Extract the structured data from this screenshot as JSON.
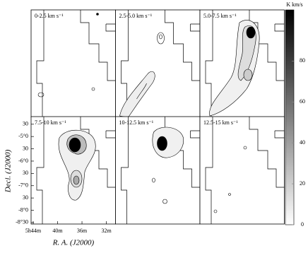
{
  "figure": {
    "panels": [
      "0-2.5 km s⁻¹",
      "2.5-5.0 km s⁻¹",
      "5.0-7.5 km s⁻¹",
      "7.5-10 km s⁻¹",
      "10-12.5 km s⁻¹",
      "12.5-15 km s⁻¹"
    ],
    "xlabel": "R. A. (J2000)",
    "ylabel": "Decl. (J2000)",
    "xlim": [
      44.35,
      30.5
    ],
    "xticks": [
      {
        "value": 44,
        "label": "5h44m"
      },
      {
        "value": 40,
        "label": "40m"
      },
      {
        "value": 36,
        "label": "36m"
      },
      {
        "value": 32,
        "label": "32m"
      }
    ],
    "ylim": [
      -8.56,
      -4.19
    ],
    "yticks": [
      {
        "value": -4.5,
        "label": "30"
      },
      {
        "value": -5,
        "label": "-5°0"
      },
      {
        "value": -5.5,
        "label": "30"
      },
      {
        "value": -6,
        "label": "-6°0"
      },
      {
        "value": -6.5,
        "label": "30"
      },
      {
        "value": -7,
        "label": "-7°0"
      },
      {
        "value": -7.5,
        "label": "30"
      },
      {
        "value": -8,
        "label": "-8°0"
      },
      {
        "value": -8.5,
        "label": "-8°30"
      }
    ],
    "colorbar": {
      "title": "K km/s",
      "lim": [
        0,
        105
      ],
      "ticks": [
        0,
        20,
        40,
        60,
        80
      ]
    }
  }
}
